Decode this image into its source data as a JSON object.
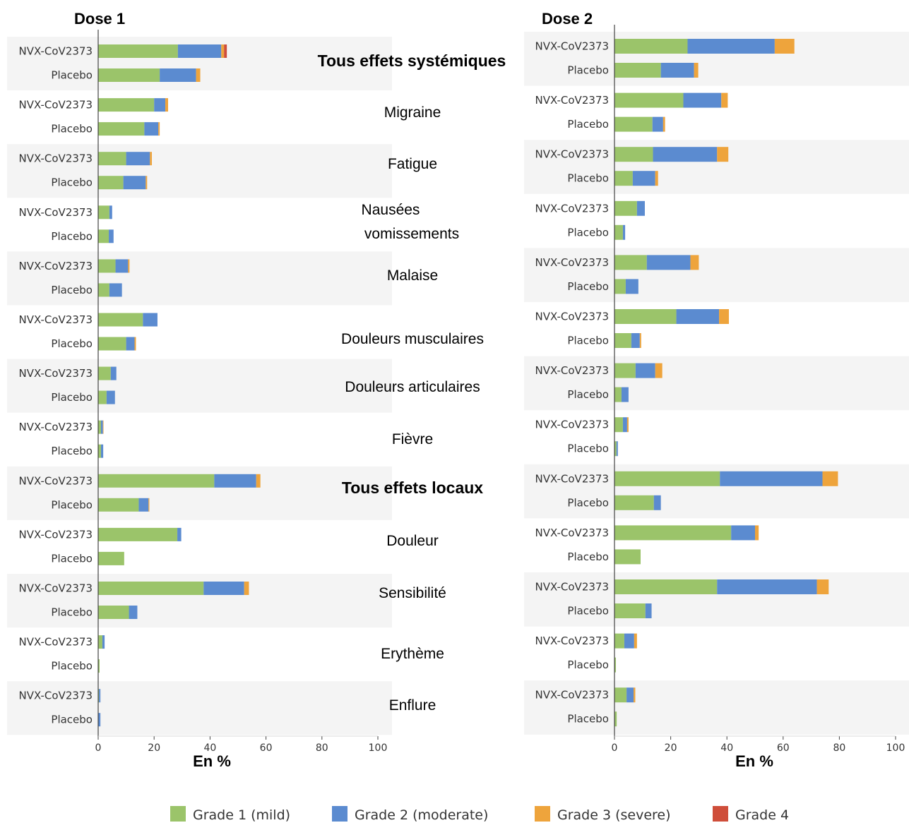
{
  "chart_data": {
    "type": "bar",
    "orientation": "horizontal",
    "stacked": true,
    "xlabel": "En %",
    "xlim": [
      0,
      100
    ],
    "xticks": [
      0,
      20,
      40,
      60,
      80,
      100
    ],
    "legend_position": "bottom",
    "legend": [
      {
        "name": "Grade 1 (mild)",
        "color": "#9bc46a"
      },
      {
        "name": "Grade 2 (moderate)",
        "color": "#5b8bd0"
      },
      {
        "name": "Grade 3 (severe)",
        "color": "#eea43c"
      },
      {
        "name": "Grade 4",
        "color": "#cf4e3a"
      }
    ],
    "effects": [
      {
        "label": "Tous effets systémiques",
        "bold": true
      },
      {
        "label": "Migraine",
        "bold": false
      },
      {
        "label": "Fatigue",
        "bold": false
      },
      {
        "label": "Nausées\nvomissements",
        "bold": false
      },
      {
        "label": "Malaise",
        "bold": false
      },
      {
        "label": "Douleurs musculaires",
        "bold": false
      },
      {
        "label": "Douleurs articulaires",
        "bold": false
      },
      {
        "label": "Fièvre",
        "bold": false
      },
      {
        "label": "Tous effets locaux",
        "bold": true
      },
      {
        "label": "Douleur",
        "bold": false
      },
      {
        "label": "Sensibilité",
        "bold": false
      },
      {
        "label": "Erythème",
        "bold": false
      },
      {
        "label": "Enflure",
        "bold": false
      }
    ],
    "groups": [
      "NVX-CoV2373",
      "Placebo"
    ],
    "panels": [
      {
        "title": "Dose 1",
        "data": [
          [
            [
              28.5,
              15.5,
              1.0,
              1.0
            ],
            [
              22.0,
              13.0,
              1.5,
              0
            ]
          ],
          [
            [
              20.0,
              4.0,
              1.0,
              0
            ],
            [
              16.5,
              5.0,
              0.5,
              0
            ]
          ],
          [
            [
              10.0,
              8.5,
              0.7,
              0
            ],
            [
              9.0,
              8.0,
              0.5,
              0
            ]
          ],
          [
            [
              4.0,
              1.0,
              0,
              0
            ],
            [
              3.8,
              1.7,
              0,
              0
            ]
          ],
          [
            [
              6.2,
              4.5,
              0.5,
              0
            ],
            [
              4.0,
              4.5,
              0,
              0
            ]
          ],
          [
            [
              16.0,
              5.2,
              0,
              0
            ],
            [
              10.0,
              3.0,
              0.5,
              0
            ]
          ],
          [
            [
              4.5,
              2.0,
              0,
              0
            ],
            [
              3.0,
              3.0,
              0,
              0
            ]
          ],
          [
            [
              1.0,
              0.7,
              0.2,
              0
            ],
            [
              1.0,
              0.8,
              0,
              0
            ]
          ],
          [
            [
              41.5,
              15.0,
              1.5,
              0
            ],
            [
              14.5,
              3.5,
              0.3,
              0
            ]
          ],
          [
            [
              28.3,
              1.4,
              0,
              0
            ],
            [
              9.3,
              0,
              0,
              0
            ]
          ],
          [
            [
              37.7,
              14.5,
              1.7,
              0
            ],
            [
              11.0,
              3.0,
              0,
              0
            ]
          ],
          [
            [
              1.5,
              0.8,
              0,
              0
            ],
            [
              0.5,
              0,
              0,
              0
            ]
          ],
          [
            [
              0.3,
              0.5,
              0,
              0
            ],
            [
              0,
              0.8,
              0,
              0
            ]
          ]
        ]
      },
      {
        "title": "Dose 2",
        "data": [
          [
            [
              26.0,
              31.0,
              7.0,
              0
            ],
            [
              16.5,
              11.8,
              1.5,
              0
            ]
          ],
          [
            [
              24.5,
              13.5,
              2.3,
              0
            ],
            [
              13.5,
              3.8,
              0.7,
              0
            ]
          ],
          [
            [
              13.7,
              22.8,
              4.0,
              0
            ],
            [
              6.5,
              8.0,
              1.0,
              0
            ]
          ],
          [
            [
              8.0,
              2.8,
              0,
              0
            ],
            [
              3.0,
              0.8,
              0,
              0
            ]
          ],
          [
            [
              11.5,
              15.5,
              3.0,
              0
            ],
            [
              4.0,
              4.5,
              0,
              0
            ]
          ],
          [
            [
              22.0,
              15.2,
              3.5,
              0
            ],
            [
              6.0,
              3.0,
              0.5,
              0
            ]
          ],
          [
            [
              7.5,
              7.0,
              2.5,
              0
            ],
            [
              2.5,
              2.5,
              0,
              0
            ]
          ],
          [
            [
              3.0,
              1.5,
              0.5,
              0
            ],
            [
              0.7,
              0.5,
              0,
              0
            ]
          ],
          [
            [
              37.5,
              36.5,
              5.5,
              0
            ],
            [
              14.0,
              2.5,
              0,
              0
            ]
          ],
          [
            [
              41.5,
              8.5,
              1.3,
              0
            ],
            [
              9.3,
              0,
              0,
              0
            ]
          ],
          [
            [
              36.5,
              35.5,
              4.2,
              0
            ],
            [
              11.0,
              2.2,
              0,
              0
            ]
          ],
          [
            [
              3.5,
              3.5,
              1.0,
              0
            ],
            [
              0.5,
              0,
              0,
              0
            ]
          ],
          [
            [
              4.3,
              2.5,
              0.6,
              0
            ],
            [
              0.8,
              0,
              0,
              0
            ]
          ]
        ]
      }
    ]
  }
}
